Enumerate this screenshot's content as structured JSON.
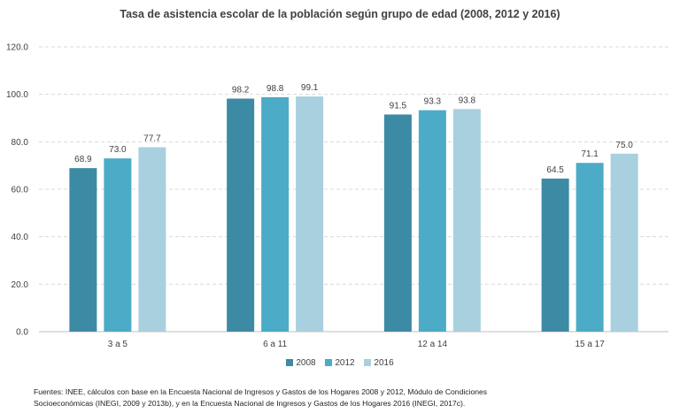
{
  "chart_data": {
    "type": "bar",
    "title": "Tasa de asistencia escolar de la población según grupo de edad (2008, 2012 y 2016)",
    "categories": [
      "3 a 5",
      "6 a 11",
      "12 a 14",
      "15 a 17"
    ],
    "series": [
      {
        "name": "2008",
        "color": "#3d8aa4",
        "values": [
          68.9,
          98.2,
          91.5,
          64.5
        ]
      },
      {
        "name": "2012",
        "color": "#4cabc7",
        "values": [
          73.0,
          98.8,
          93.3,
          71.1
        ]
      },
      {
        "name": "2016",
        "color": "#a9d0df",
        "values": [
          77.7,
          99.1,
          93.8,
          75.0
        ]
      }
    ],
    "ylim": [
      0,
      120
    ],
    "yticks": [
      "0.0",
      "20.0",
      "40.0",
      "60.0",
      "80.0",
      "100.0",
      "120.0"
    ],
    "grid": true,
    "legend_position": "bottom",
    "data_labels": [
      [
        "68.9",
        "98.2",
        "91.5",
        "64.5"
      ],
      [
        "73.0",
        "98.8",
        "93.3",
        "71.1"
      ],
      [
        "77.7",
        "99.1",
        "93.8",
        "75.0"
      ]
    ]
  },
  "source_note": [
    "Fuentes: INEE, cálculos con base en la Encuesta Nacional de Ingresos y Gastos de los Hogares 2008 y 2012, Módulo de Condiciones",
    "Socioeconómicas (INEGI, 2009 y 2013b), y en la Encuesta Nacional de Ingresos y Gastos de los Hogares 2016 (INEGI, 2017c)."
  ]
}
